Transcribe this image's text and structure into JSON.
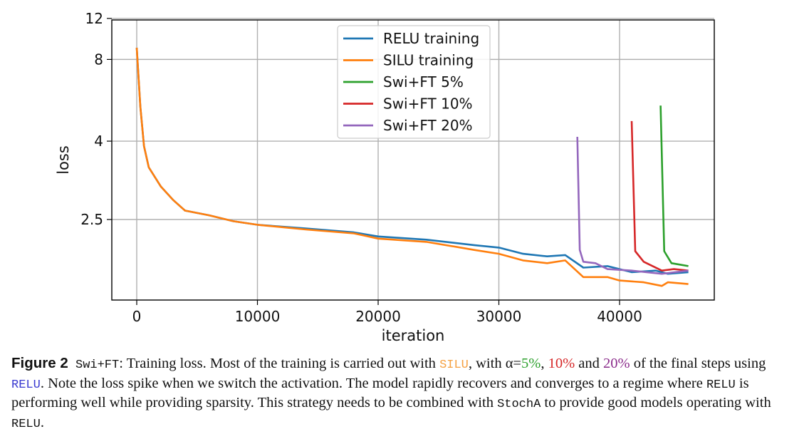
{
  "chart_data": {
    "type": "line",
    "xlabel": "iteration",
    "ylabel": "loss",
    "xlim": [
      -2000,
      46000
    ],
    "ylim": [
      1.89,
      12
    ],
    "yscale": "nonlinear (log(loss-1.5))",
    "xticks": [
      0,
      10000,
      20000,
      30000,
      40000
    ],
    "yticks": [
      2.5,
      4,
      8,
      12
    ],
    "grid": true,
    "legend_position": "top-center",
    "series": [
      {
        "name": "RELU training",
        "color": "#1f77b4",
        "x": [
          0,
          300,
          600,
          1000,
          2000,
          3000,
          4000,
          6000,
          8000,
          10000,
          14000,
          18000,
          20000,
          24000,
          28000,
          30000,
          32000,
          34000,
          35500,
          37000,
          39000,
          41000,
          43000,
          44000,
          45700
        ],
        "y": [
          8.95,
          5.23,
          3.86,
          3.34,
          2.97,
          2.76,
          2.61,
          2.55,
          2.48,
          2.44,
          2.4,
          2.36,
          2.32,
          2.29,
          2.24,
          2.22,
          2.17,
          2.15,
          2.16,
          2.07,
          2.08,
          2.04,
          2.05,
          2.03,
          2.04
        ]
      },
      {
        "name": "SILU training",
        "color": "#ff7f0e",
        "x": [
          0,
          300,
          600,
          1000,
          2000,
          3000,
          4000,
          6000,
          8000,
          10000,
          14000,
          18000,
          20000,
          24000,
          28000,
          30000,
          32000,
          34000,
          35500,
          37000,
          39000,
          40000,
          42000,
          43500,
          44000,
          45700
        ],
        "y": [
          8.95,
          5.23,
          3.86,
          3.34,
          2.97,
          2.76,
          2.61,
          2.55,
          2.48,
          2.44,
          2.39,
          2.35,
          2.3,
          2.27,
          2.2,
          2.17,
          2.12,
          2.1,
          2.12,
          2.01,
          2.01,
          1.99,
          1.98,
          1.96,
          1.98,
          1.97
        ]
      },
      {
        "name": "Swi+FT 5%",
        "color": "#2ca02c",
        "x": [
          43400,
          43700,
          44300,
          45000,
          45700
        ],
        "y": [
          5.29,
          2.19,
          2.1,
          2.09,
          2.08
        ]
      },
      {
        "name": "Swi+FT 10%",
        "color": "#d62728",
        "x": [
          41000,
          41300,
          42000,
          43500,
          44500,
          45700
        ],
        "y": [
          4.66,
          2.19,
          2.11,
          2.05,
          2.06,
          2.05
        ]
      },
      {
        "name": "Swi+FT 20%",
        "color": "#9467bd",
        "x": [
          36500,
          36700,
          37000,
          38000,
          39000,
          41000,
          43500,
          45700
        ],
        "y": [
          4.13,
          2.2,
          2.11,
          2.1,
          2.06,
          2.05,
          2.03,
          2.05
        ]
      }
    ]
  },
  "caption": {
    "label": "Figure 2",
    "p1": "Swi+FT",
    "p2": ": Training loss. Most of the training is carried out with ",
    "silu": "SILU",
    "p3": ", with α=",
    "pct5": "5%",
    "sep1": ", ",
    "pct10": "10%",
    "sep2": " and ",
    "pct20": "20%",
    "p4": " of the final steps using ",
    "relu1": "RELU",
    "p5": ". Note the loss spike when we switch the activation. The model rapidly recovers and converges to a regime where ",
    "relu2": "RELU",
    "p6": " is performing well while providing sparsity. This strategy needs to be combined with ",
    "stoch": "StochA",
    "p7": " to provide good models operating with ",
    "relu3": "RELU",
    "p8": ".",
    "colors": {
      "silu": "#f5a040",
      "pct5": "#2ca02c",
      "pct10": "#d62728",
      "pct20": "#8b2c8b",
      "relu": "#3a3ad0"
    }
  }
}
